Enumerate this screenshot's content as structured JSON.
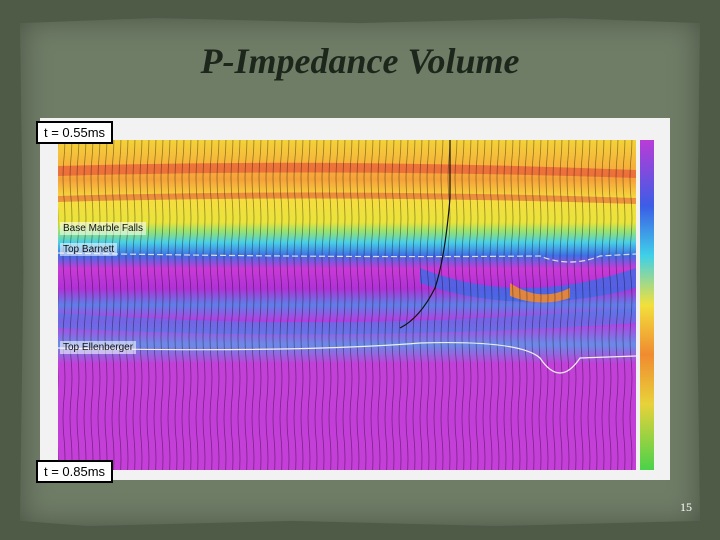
{
  "title": "P-Impedance Volume",
  "time_labels": {
    "top": "t = 0.55ms",
    "bottom": "t = 0.85ms"
  },
  "horizons": [
    "Base Marble Falls",
    "Top Barnett",
    "Top Ellenberger"
  ],
  "page_number": "15"
}
